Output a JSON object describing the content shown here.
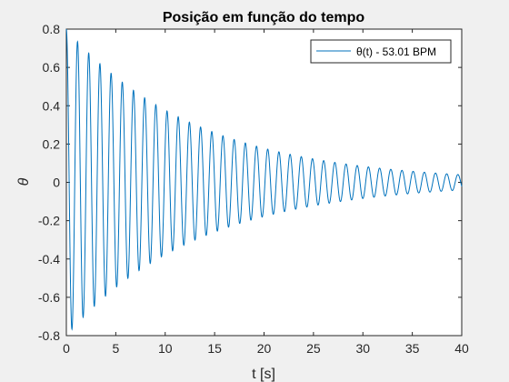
{
  "chart_data": {
    "type": "line",
    "title": "Posição em função do tempo",
    "xlabel": "t [s]",
    "ylabel": "θ",
    "xlim": [
      0,
      40
    ],
    "ylim": [
      -0.8,
      0.8
    ],
    "xticks": [
      0,
      5,
      10,
      15,
      20,
      25,
      30,
      35,
      40
    ],
    "xtick_labels": [
      "0",
      "5",
      "10",
      "15",
      "20",
      "25",
      "30",
      "35",
      "40"
    ],
    "yticks": [
      -0.8,
      -0.6,
      -0.4,
      -0.2,
      0,
      0.2,
      0.4,
      0.6,
      0.8
    ],
    "ytick_labels": [
      "-0.8",
      "-0.6",
      "-0.4",
      "-0.2",
      "0",
      "0.2",
      "0.4",
      "0.6",
      "0.8"
    ],
    "grid": false,
    "legend_position": "top-right",
    "series": [
      {
        "name": "θ(t) - 53.01 BPM",
        "legend_label": "θ(t) - 53.01 BPM",
        "color": "#0072BD",
        "model": "damped cosine",
        "amplitude": 0.8,
        "frequency_bpm": 53.01,
        "decay_rate_per_s": 0.075,
        "t_start": 0,
        "t_end": 40
      }
    ]
  }
}
